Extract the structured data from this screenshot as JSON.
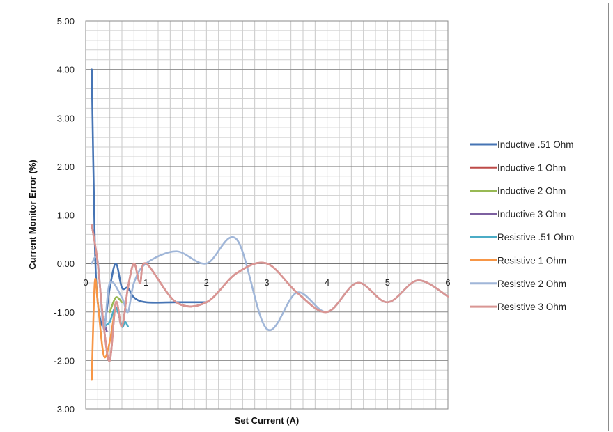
{
  "chart_data": {
    "type": "line",
    "title": "",
    "xlabel": "Set Current (A)",
    "ylabel": "Current Monitor  Error (%)",
    "xlim": [
      0,
      6
    ],
    "ylim": [
      -3,
      5
    ],
    "x_ticks": [
      "0",
      "1",
      "2",
      "3",
      "4",
      "5",
      "6"
    ],
    "y_ticks": [
      "5.00",
      "4.00",
      "3.00",
      "2.00",
      "1.00",
      "0.00",
      "-1.00",
      "-2.00",
      "-3.00"
    ],
    "grid": true,
    "legend_position": "right",
    "series": [
      {
        "name": "Inductive .51 Ohm",
        "color": "#4674b4",
        "x": [
          0.1,
          0.15,
          0.2,
          0.3,
          0.4,
          0.5,
          0.6,
          0.7,
          0.8,
          1.0,
          1.5,
          2.0
        ],
        "y": [
          4.0,
          0.5,
          -0.8,
          -1.3,
          -0.5,
          0.0,
          -0.5,
          -0.5,
          -0.7,
          -0.8,
          -0.8,
          -0.8
        ]
      },
      {
        "name": "Inductive 1 Ohm",
        "color": "#be4b48",
        "x": [
          0.1,
          0.2,
          0.3,
          0.4,
          0.5,
          0.6,
          0.7,
          0.8,
          0.9,
          1.0,
          1.5,
          2.0,
          2.5,
          3.0,
          3.5,
          4.0,
          4.5,
          5.0,
          5.5,
          6.0
        ],
        "y": [
          0.8,
          0.0,
          -1.3,
          -2.0,
          -0.8,
          -1.3,
          -0.5,
          0.0,
          -0.4,
          0.0,
          -0.8,
          -0.8,
          -0.2,
          0.0,
          -0.6,
          -1.0,
          -0.4,
          -0.8,
          -0.35,
          -0.68
        ]
      },
      {
        "name": "Inductive 2 Ohm",
        "color": "#98b954",
        "x": [
          0.4,
          0.5,
          0.6
        ],
        "y": [
          -1.0,
          -0.7,
          -0.8
        ]
      },
      {
        "name": "Inductive 3 Ohm",
        "color": "#7d60a0",
        "x": [
          0.3,
          0.35
        ],
        "y": [
          -1.2,
          -1.4
        ]
      },
      {
        "name": "Resistive .51 Ohm",
        "color": "#4bacc6",
        "x": [
          0.3,
          0.4,
          0.5,
          0.6,
          0.65,
          0.7
        ],
        "y": [
          -1.3,
          -1.2,
          -0.9,
          -1.3,
          -1.2,
          -1.3
        ]
      },
      {
        "name": "Resistive 1 Ohm",
        "color": "#f79646",
        "x": [
          0.1,
          0.15,
          0.2,
          0.3,
          0.4,
          0.5
        ],
        "y": [
          -2.4,
          -0.4,
          -0.8,
          -1.9,
          -1.6,
          -0.8
        ]
      },
      {
        "name": "Resistive 2 Ohm",
        "color": "#a0b6d8",
        "x": [
          0.1,
          0.2,
          0.3,
          0.4,
          0.6,
          0.7,
          0.8,
          1.0,
          1.5,
          2.0,
          2.5,
          3.0,
          3.5,
          4.0,
          4.5,
          5.0,
          5.5,
          6.0
        ],
        "y": [
          0.0,
          0.05,
          -1.35,
          -0.4,
          -0.7,
          -1.0,
          -0.4,
          0.0,
          0.25,
          0.0,
          0.5,
          -1.35,
          -0.6,
          -1.0,
          -0.4,
          -0.8,
          -0.35,
          -0.68
        ]
      },
      {
        "name": "Resistive 3 Ohm",
        "color": "#d99694",
        "x": [
          0.1,
          0.2,
          0.3,
          0.4,
          0.5,
          0.6,
          0.7,
          0.8,
          0.9,
          1.0,
          1.5,
          2.0,
          2.5,
          3.0,
          3.5,
          4.0,
          4.5,
          5.0,
          5.5,
          6.0
        ],
        "y": [
          0.8,
          0.0,
          -1.3,
          -2.0,
          -0.8,
          -1.3,
          -0.5,
          0.0,
          -0.4,
          0.0,
          -0.8,
          -0.8,
          -0.2,
          0.0,
          -0.6,
          -1.0,
          -0.4,
          -0.8,
          -0.35,
          -0.68
        ]
      }
    ]
  }
}
